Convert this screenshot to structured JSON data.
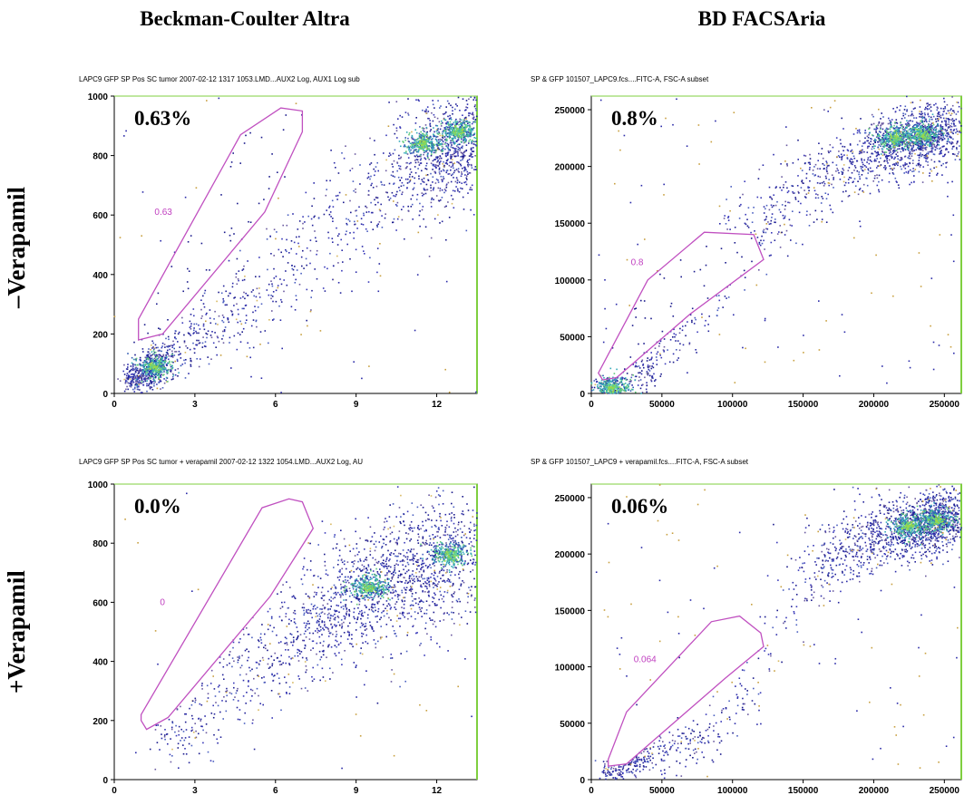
{
  "column_headers": [
    "Beckman-Coulter Altra",
    "BD FACSAria"
  ],
  "row_labels": [
    "–Verapamil",
    "+Verapamil"
  ],
  "chart_data": [
    {
      "type": "scatter",
      "title": "LAPC9 GFP SP Pos SC tumor 2007-02-12 1317 1053.LMD...AUX2 Log, AUX1 Log sub",
      "xlim": [
        0,
        13.5
      ],
      "ylim": [
        0,
        1000
      ],
      "xticks": [
        0,
        3,
        6,
        9,
        12
      ],
      "yticks": [
        0,
        200,
        400,
        600,
        800,
        1000
      ],
      "percentage": "0.63%",
      "gate_label": "0.63",
      "gate_polygon": [
        [
          0.9,
          180
        ],
        [
          1.8,
          200
        ],
        [
          5.6,
          610
        ],
        [
          7.0,
          880
        ],
        [
          7.0,
          950
        ],
        [
          6.2,
          960
        ],
        [
          4.7,
          870
        ],
        [
          0.9,
          250
        ]
      ],
      "gate_label_pos": [
        1.5,
        600
      ],
      "density_path": [
        [
          0.5,
          40
        ],
        [
          2,
          120
        ],
        [
          5,
          320
        ],
        [
          8,
          520
        ],
        [
          10.5,
          710
        ],
        [
          12,
          800
        ],
        [
          13.5,
          860
        ]
      ],
      "density_spread": [
        20,
        40,
        70,
        90,
        95,
        90,
        90
      ],
      "density_weights": [
        0.25,
        0.1,
        0.08,
        0.08,
        0.12,
        0.2,
        0.17
      ],
      "hot_spots": [
        [
          1.5,
          90
        ],
        [
          11.5,
          840
        ],
        [
          12.8,
          880
        ]
      ],
      "n_points": 1900,
      "gate_points": 45,
      "outliers": 60
    },
    {
      "type": "scatter",
      "title": "SP & GFP 101507_LAPC9.fcs....FITC-A, FSC-A subset",
      "xlim": [
        0,
        262000
      ],
      "ylim": [
        0,
        262000
      ],
      "xticks": [
        0,
        50000,
        100000,
        150000,
        200000,
        250000
      ],
      "yticks": [
        0,
        50000,
        100000,
        150000,
        200000,
        250000
      ],
      "percentage": "0.8%",
      "gate_label": "0.8",
      "gate_polygon": [
        [
          8000,
          12000
        ],
        [
          18000,
          14000
        ],
        [
          70000,
          70000
        ],
        [
          122000,
          118000
        ],
        [
          115000,
          140000
        ],
        [
          80000,
          142000
        ],
        [
          40000,
          100000
        ],
        [
          5000,
          18000
        ]
      ],
      "gate_label_pos": [
        28000,
        113000
      ],
      "density_path": [
        [
          5000,
          3000
        ],
        [
          40000,
          20000
        ],
        [
          100000,
          130000
        ],
        [
          160000,
          185000
        ],
        [
          200000,
          215000
        ],
        [
          230000,
          225000
        ],
        [
          258000,
          230000
        ]
      ],
      "density_spread": [
        6000,
        10000,
        18000,
        18000,
        15000,
        14000,
        14000
      ],
      "density_weights": [
        0.08,
        0.12,
        0.12,
        0.12,
        0.25,
        0.21,
        0.1
      ],
      "hot_spots": [
        [
          15000,
          5000
        ],
        [
          215000,
          225000
        ],
        [
          235000,
          228000
        ]
      ],
      "n_points": 1800,
      "gate_points": 40,
      "outliers": 120
    },
    {
      "type": "scatter",
      "title": "LAPC9 GFP SP Pos SC tumor + verapamil 2007-02-12 1322 1054.LMD...AUX2 Log, AU",
      "xlim": [
        0,
        13.5
      ],
      "ylim": [
        0,
        1000
      ],
      "xticks": [
        0,
        3,
        6,
        9,
        12
      ],
      "yticks": [
        0,
        200,
        400,
        600,
        800,
        1000
      ],
      "percentage": "0.0%",
      "gate_label": "0",
      "gate_polygon": [
        [
          1.0,
          200
        ],
        [
          1.2,
          170
        ],
        [
          2.0,
          210
        ],
        [
          5.8,
          620
        ],
        [
          7.4,
          850
        ],
        [
          7.0,
          940
        ],
        [
          6.5,
          950
        ],
        [
          5.5,
          920
        ],
        [
          1.0,
          220
        ]
      ],
      "gate_label_pos": [
        1.7,
        590
      ],
      "density_path": [
        [
          2,
          120
        ],
        [
          4.5,
          330
        ],
        [
          7,
          500
        ],
        [
          9,
          620
        ],
        [
          11,
          700
        ],
        [
          13.5,
          790
        ]
      ],
      "density_spread": [
        50,
        80,
        90,
        100,
        110,
        110
      ],
      "density_weights": [
        0.08,
        0.12,
        0.2,
        0.25,
        0.2,
        0.15
      ],
      "hot_spots": [
        [
          9.5,
          650
        ],
        [
          12.5,
          760
        ]
      ],
      "n_points": 1900,
      "gate_points": 0,
      "outliers": 40
    },
    {
      "type": "scatter",
      "title": "SP & GFP 101507_LAPC9 + verapamil.fcs....FITC-A, FSC-A subset",
      "xlim": [
        0,
        262000
      ],
      "ylim": [
        0,
        262000
      ],
      "xticks": [
        0,
        50000,
        100000,
        150000,
        200000,
        250000
      ],
      "yticks": [
        0,
        50000,
        100000,
        150000,
        200000,
        250000
      ],
      "percentage": "0.06%",
      "gate_label": "0.064",
      "gate_polygon": [
        [
          12000,
          12000
        ],
        [
          25000,
          14000
        ],
        [
          95000,
          90000
        ],
        [
          122000,
          118000
        ],
        [
          120000,
          130000
        ],
        [
          105000,
          145000
        ],
        [
          85000,
          140000
        ],
        [
          25000,
          60000
        ],
        [
          12000,
          18000
        ]
      ],
      "gate_label_pos": [
        30000,
        104000
      ],
      "density_path": [
        [
          8000,
          4000
        ],
        [
          40000,
          20000
        ],
        [
          90000,
          40000
        ],
        [
          160000,
          190000
        ],
        [
          200000,
          215000
        ],
        [
          235000,
          225000
        ],
        [
          258000,
          235000
        ]
      ],
      "density_spread": [
        5000,
        8000,
        10000,
        18000,
        16000,
        14000,
        14000
      ],
      "density_weights": [
        0.1,
        0.08,
        0.05,
        0.15,
        0.27,
        0.23,
        0.12
      ],
      "hot_spots": [
        [
          225000,
          225000
        ],
        [
          245000,
          230000
        ]
      ],
      "n_points": 1800,
      "gate_points": 3,
      "outliers": 110
    }
  ]
}
